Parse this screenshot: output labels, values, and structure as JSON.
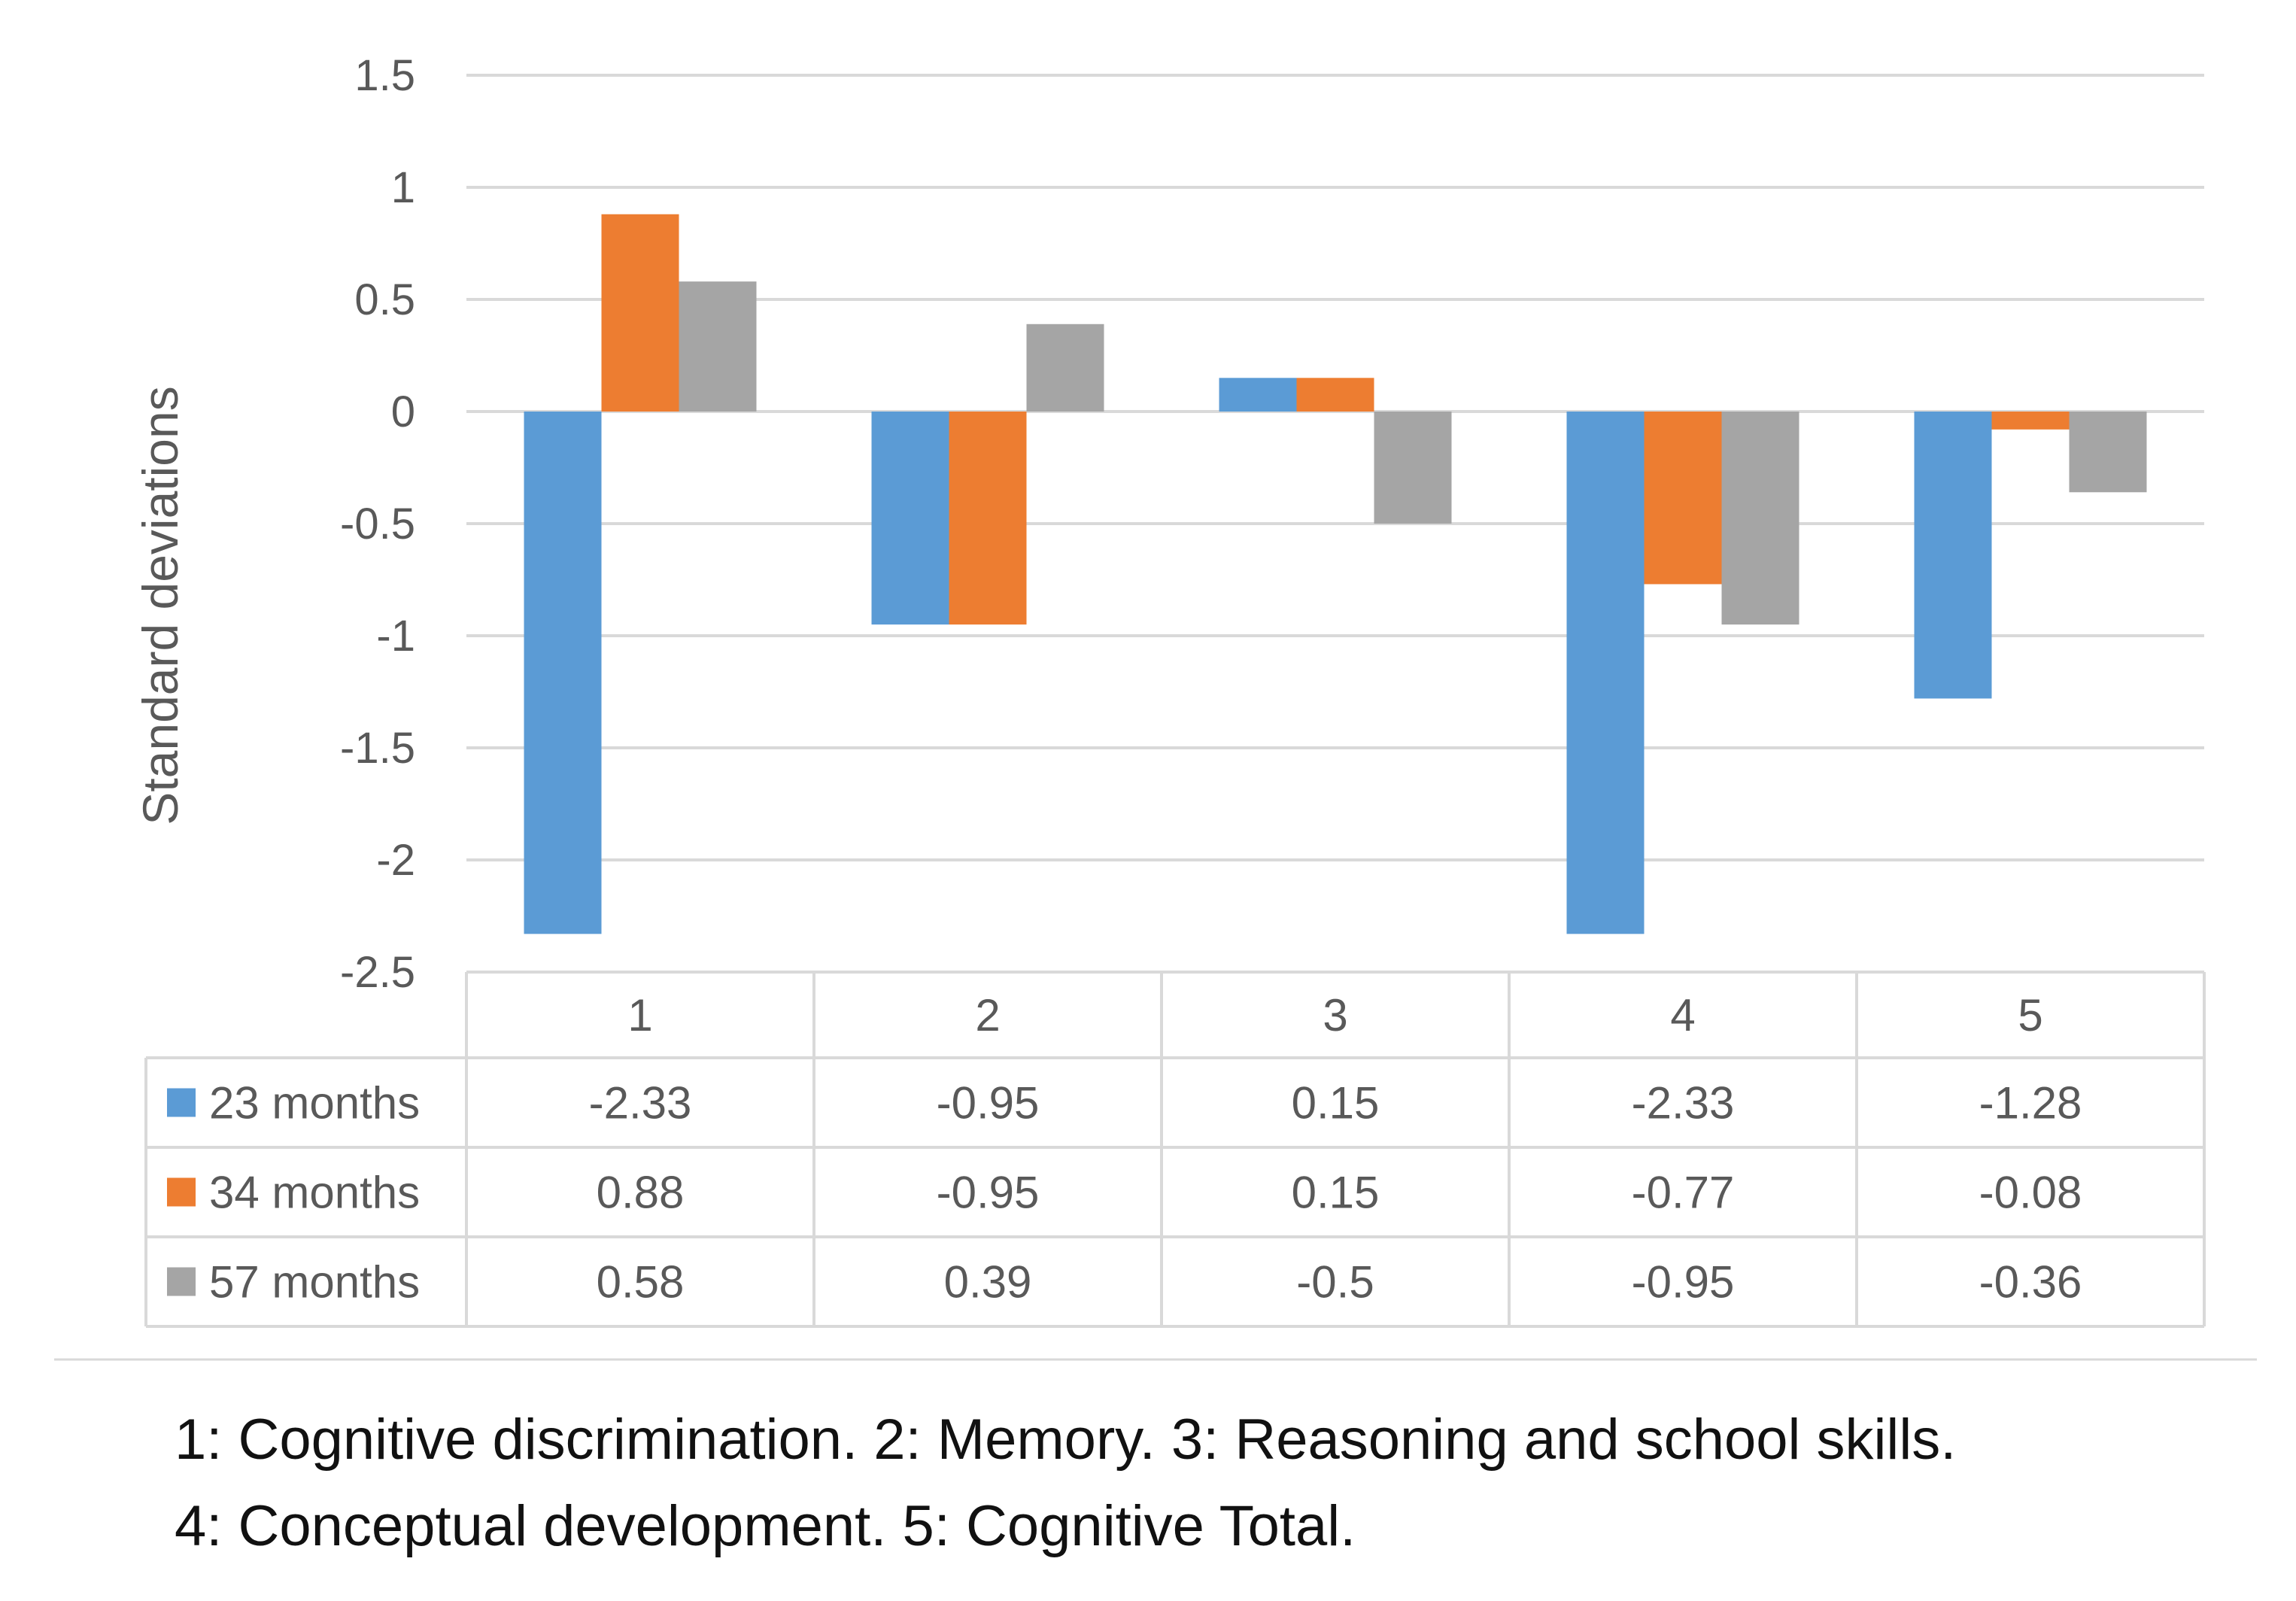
{
  "chart_data": {
    "type": "bar",
    "title": "",
    "xlabel": "",
    "ylabel": "Standard deviations",
    "ylim": [
      -2.5,
      1.5
    ],
    "yticks": [
      1.5,
      1,
      0.5,
      0,
      -0.5,
      -1,
      -1.5,
      -2,
      -2.5
    ],
    "ytick_labels": [
      "1.5",
      "1",
      "0.5",
      "0",
      "-0.5",
      "-1",
      "-1.5",
      "-2",
      "-2.5"
    ],
    "grid": true,
    "legend": "data-table",
    "categories": [
      "1",
      "2",
      "3",
      "4",
      "5"
    ],
    "series": [
      {
        "name": "23 months",
        "color": "#5B9BD5",
        "values": [
          -2.33,
          -0.95,
          0.15,
          -2.33,
          -1.28
        ],
        "labels": [
          "-2.33",
          "-0.95",
          "0.15",
          "-2.33",
          "-1.28"
        ]
      },
      {
        "name": "34 months",
        "color": "#ED7D31",
        "values": [
          0.88,
          -0.95,
          0.15,
          -0.77,
          -0.08
        ],
        "labels": [
          "0.88",
          "-0.95",
          "0.15",
          "-0.77",
          "-0.08"
        ]
      },
      {
        "name": "57 months",
        "color": "#A5A5A5",
        "values": [
          0.58,
          0.39,
          -0.5,
          -0.95,
          -0.36
        ],
        "labels": [
          "0.58",
          "0.39",
          "-0.5",
          "-0.95",
          "-0.36"
        ]
      }
    ]
  },
  "caption": {
    "line1": "1: Cognitive discrimination. 2: Memory. 3: Reasoning and school skills.",
    "line2": "4: Conceptual development. 5: Cognitive Total."
  }
}
